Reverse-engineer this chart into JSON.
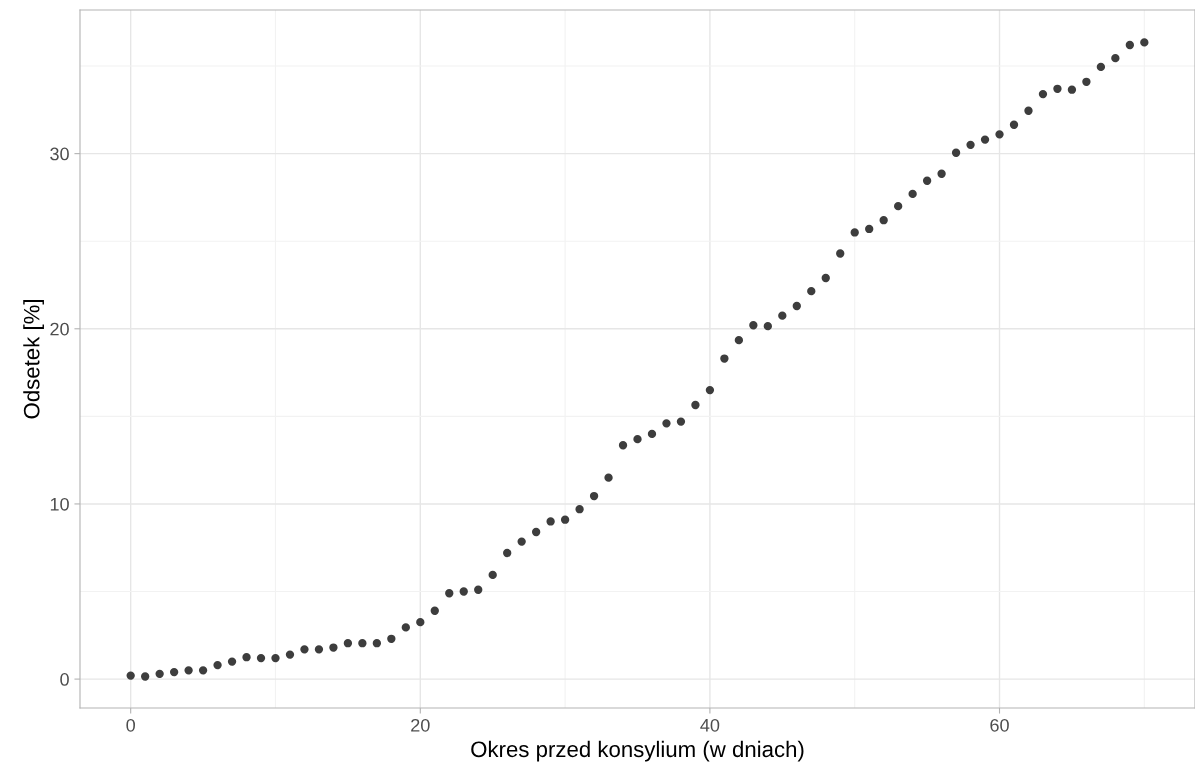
{
  "chart_data": {
    "type": "scatter",
    "xlabel": "Okres przed konsylium (w dniach)",
    "ylabel": "Odsetek [%]",
    "x": [
      0,
      1,
      2,
      3,
      4,
      5,
      6,
      7,
      8,
      9,
      10,
      11,
      12,
      13,
      14,
      15,
      16,
      17,
      18,
      19,
      20,
      21,
      22,
      23,
      24,
      25,
      26,
      27,
      28,
      29,
      30,
      31,
      32,
      33,
      34,
      35,
      36,
      37,
      38,
      39,
      40,
      41,
      42,
      43,
      44,
      45,
      46,
      47,
      48,
      49,
      50,
      51,
      52,
      53,
      54,
      55,
      56,
      57,
      58,
      59,
      60,
      61,
      62,
      63,
      64,
      65,
      66,
      67,
      68,
      69,
      70
    ],
    "series": [
      {
        "color": "#3d3d3d",
        "values": [
          0.2,
          0.15,
          0.3,
          0.4,
          0.5,
          0.5,
          0.8,
          1.0,
          1.25,
          1.2,
          1.2,
          1.4,
          1.7,
          1.7,
          1.8,
          2.05,
          2.05,
          2.05,
          2.3,
          2.95,
          3.25,
          3.9,
          4.9,
          5.0,
          5.1,
          5.95,
          7.2,
          7.85,
          8.4,
          9.0,
          9.1,
          9.7,
          10.45,
          11.5,
          13.35,
          13.7,
          14.0,
          14.6,
          14.7,
          15.65,
          16.5,
          18.3,
          19.35,
          20.2,
          20.15,
          20.75,
          21.3,
          22.15,
          22.9,
          24.3,
          25.5,
          25.7,
          26.2,
          27.0,
          27.7,
          28.45,
          28.85,
          30.05,
          30.5,
          30.8,
          31.1,
          31.65,
          32.45,
          33.4,
          33.7,
          33.65,
          34.1,
          34.95,
          35.45,
          36.2,
          36.35
        ]
      }
    ],
    "xlim": [
      -3.5,
      73.5
    ],
    "ylim": [
      -1.65,
      38.2
    ],
    "xticks": [
      0,
      {
        "value": 10,
        "label": null
      },
      20,
      {
        "value": 30,
        "label": null
      },
      40,
      {
        "value": 50,
        "label": null
      },
      60,
      {
        "value": 70,
        "label": null
      }
    ],
    "yticks": [
      0,
      {
        "value": 5,
        "label": null
      },
      10,
      {
        "value": 15,
        "label": null
      },
      20,
      {
        "value": 25,
        "label": null
      },
      30,
      {
        "value": 35,
        "label": null
      }
    ],
    "grid": true,
    "marker": "circle"
  }
}
